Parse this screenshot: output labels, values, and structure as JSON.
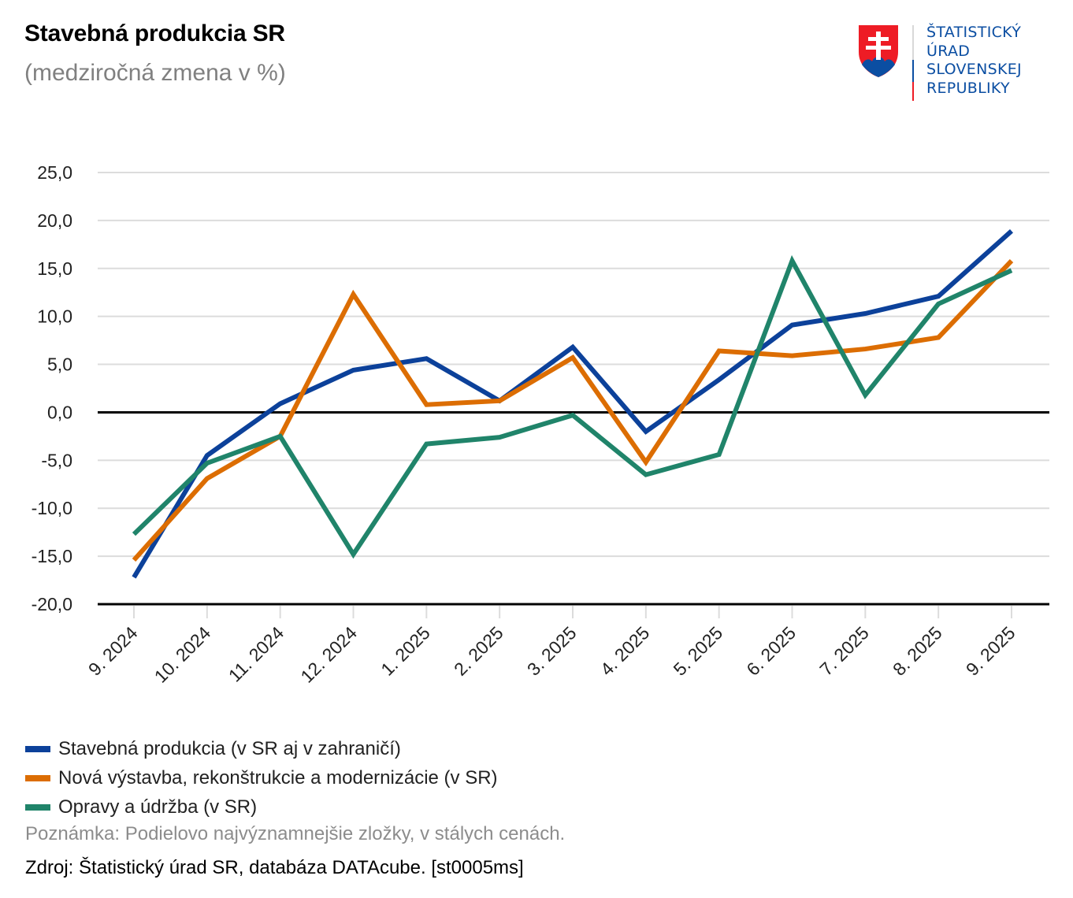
{
  "header": {
    "title": "Stavebná produkcia SR",
    "subtitle": "(medziročná zmena v %)"
  },
  "logo": {
    "lines": [
      "ŠTATISTICKÝ",
      "ÚRAD",
      "SLOVENSKEJ",
      "REPUBLIKY"
    ],
    "emblem": "slovak-coat-of-arms-icon",
    "colors": {
      "red": "#ee1c25",
      "blue": "#0b4ea2",
      "white": "#ffffff"
    }
  },
  "chart_data": {
    "type": "line",
    "title": "Stavebná produkcia SR",
    "subtitle": "(medziročná zmena v %)",
    "xlabel": "",
    "ylabel": "",
    "ylim": [
      -20,
      25
    ],
    "yticks": [
      25,
      20,
      15,
      10,
      5,
      0,
      -5,
      -10,
      -15,
      -20
    ],
    "ytick_labels": [
      "25,0",
      "20,0",
      "15,0",
      "10,0",
      "5,0",
      "0,0",
      "-5,0",
      "-10,0",
      "-15,0",
      "-20,0"
    ],
    "grid": true,
    "legend_position": "bottom-left",
    "categories": [
      "9. 2024",
      "10. 2024",
      "11. 2024",
      "12. 2024",
      "1. 2025",
      "2. 2025",
      "3. 2025",
      "4. 2025",
      "5. 2025",
      "6. 2025",
      "7. 2025",
      "8. 2025",
      "9. 2025"
    ],
    "series": [
      {
        "name": "Stavebná produkcia (v SR aj v zahraničí)",
        "color": "#0c419a",
        "values": [
          -17.2,
          -4.5,
          0.9,
          4.4,
          5.6,
          1.2,
          6.8,
          -2.0,
          3.4,
          9.1,
          10.3,
          12.1,
          18.9
        ]
      },
      {
        "name": "Nová výstavba, rekonštrukcie a modernizácie (v SR)",
        "color": "#dc6d02",
        "values": [
          -15.4,
          -6.9,
          -2.5,
          12.3,
          0.8,
          1.2,
          5.7,
          -5.2,
          6.4,
          5.9,
          6.6,
          7.8,
          15.8
        ]
      },
      {
        "name": "Opravy a údržba (v SR)",
        "color": "#20846a",
        "values": [
          -12.7,
          -5.3,
          -2.5,
          -14.8,
          -3.3,
          -2.6,
          -0.3,
          -6.5,
          -4.4,
          15.8,
          1.8,
          11.3,
          14.8
        ]
      }
    ]
  },
  "footer": {
    "note": "Poznámka: Podielovo najvýznamnejšie zložky, v stálych cenách.",
    "source": "Zdroj: Štatistický úrad SR, databáza DATAcube. [st0005ms]"
  }
}
